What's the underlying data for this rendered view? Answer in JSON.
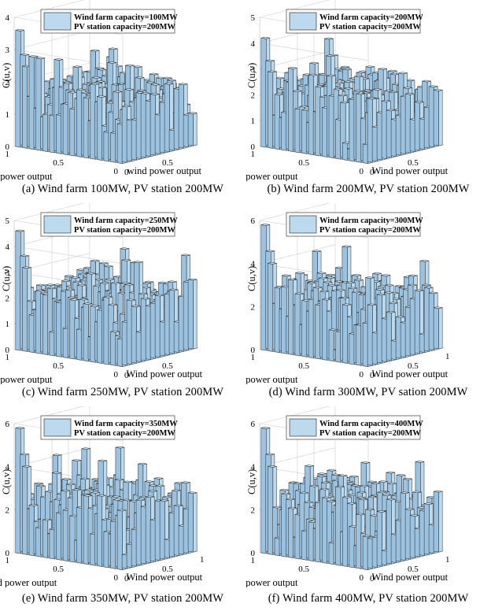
{
  "figure": {
    "colors": {
      "bar_face": "#bcd9ee",
      "bar_side": "#9cc2df",
      "bar_top": "#d7ebf8",
      "edge": "#1a1a1a",
      "grid": "#cfcfcf"
    }
  },
  "chart_data": [
    {
      "type": "bar3d",
      "caption": "(a) Wind farm 100MW, PV station 200MW",
      "legend": [
        "Wind farm capacity=100MW",
        "PV station capacity=200MW"
      ],
      "zlabel": "C(u,v)",
      "xlabel": "wind power output",
      "ylabel": "PV power output",
      "zlim": [
        0,
        4
      ],
      "zticks": [
        "0",
        "1",
        "2",
        "3",
        "4"
      ],
      "xticks": [
        "0",
        "0.5"
      ],
      "yticks": [
        "1",
        "0.5",
        "0"
      ],
      "grid": true,
      "legend_position": "top-left",
      "peaks": [
        {
          "pos": "back-left",
          "value": 3.6
        }
      ]
    },
    {
      "type": "bar3d",
      "caption": "(b) Wind farm 200MW, PV station 200MW",
      "legend": [
        "Wind farm capacity=200MW",
        "PV station capacity=200MW"
      ],
      "zlabel": "C(u,v)",
      "xlabel": "Wind power output",
      "ylabel": "PV power output",
      "zlim": [
        0,
        5
      ],
      "zticks": [
        "0",
        "1",
        "2",
        "3",
        "4",
        "5"
      ],
      "xticks": [
        "0",
        "0.5"
      ],
      "yticks": [
        "1",
        "0.5",
        "0"
      ],
      "grid": true,
      "legend_position": "top-left",
      "peaks": [
        {
          "pos": "back-left",
          "value": 4.2
        }
      ]
    },
    {
      "type": "bar3d",
      "caption": "(c) Wind farm 250MW, PV station 200MW",
      "legend": [
        "Wind farm capacity=250MW",
        "PV station capacity=200MW"
      ],
      "zlabel": "C(u,v)",
      "xlabel": "Wind power output",
      "ylabel": "PV power output",
      "zlim": [
        0,
        5
      ],
      "zticks": [
        "0",
        "1",
        "2",
        "3",
        "4",
        "5"
      ],
      "xticks": [
        "0",
        "0.5"
      ],
      "yticks": [
        "1",
        "0.5",
        "0"
      ],
      "grid": true,
      "legend_position": "top-left",
      "peaks": [
        {
          "pos": "back-left",
          "value": 4.6
        }
      ]
    },
    {
      "type": "bar3d",
      "caption": "(d) Wind farm 300MW, PV sation 200MW",
      "legend": [
        "Wind farm capacity=300MW",
        "PV station capacity=200MW"
      ],
      "zlabel": "C(u,v)",
      "xlabel": "Wind power output",
      "ylabel": "PV power output",
      "zlim": [
        0,
        6
      ],
      "zticks": [
        "0",
        "2",
        "4",
        "6"
      ],
      "xticks": [
        "0",
        "0.5",
        "1"
      ],
      "yticks": [
        "1",
        "0.5",
        "0"
      ],
      "grid": true,
      "legend_position": "top-left",
      "peaks": [
        {
          "pos": "back-left",
          "value": 5.8
        }
      ]
    },
    {
      "type": "bar3d",
      "caption": "(e) Wind farm 350MW, PV station 200MW",
      "legend": [
        "Wind farm capacity=350MW",
        "PV station capacity=200MW"
      ],
      "zlabel": "C(u,v)",
      "xlabel": "Wind power output",
      "ylabel": "Wind power output",
      "zlim": [
        0,
        6
      ],
      "zticks": [
        "0",
        "2",
        "4",
        "6"
      ],
      "xticks": [
        "0",
        "0.5",
        "1"
      ],
      "yticks": [
        "1",
        "0.5",
        "0"
      ],
      "grid": true,
      "legend_position": "top-left",
      "peaks": [
        {
          "pos": "back-left",
          "value": 5.8
        }
      ]
    },
    {
      "type": "bar3d",
      "caption": "(f) Wind farm 400MW, PV station 200MW",
      "legend": [
        "Wind farm capacity=400MW",
        "PV station capacity=200MW"
      ],
      "zlabel": "C(u,v)",
      "xlabel": "Wind power output",
      "ylabel": "PV power output",
      "zlim": [
        0,
        6
      ],
      "zticks": [
        "0",
        "2",
        "4",
        "6"
      ],
      "xticks": [
        "0",
        "0.5",
        "1"
      ],
      "yticks": [
        "1",
        "0.5",
        "0"
      ],
      "grid": true,
      "legend_position": "top-left",
      "peaks": [
        {
          "pos": "back-left",
          "value": 5.8
        }
      ]
    }
  ]
}
